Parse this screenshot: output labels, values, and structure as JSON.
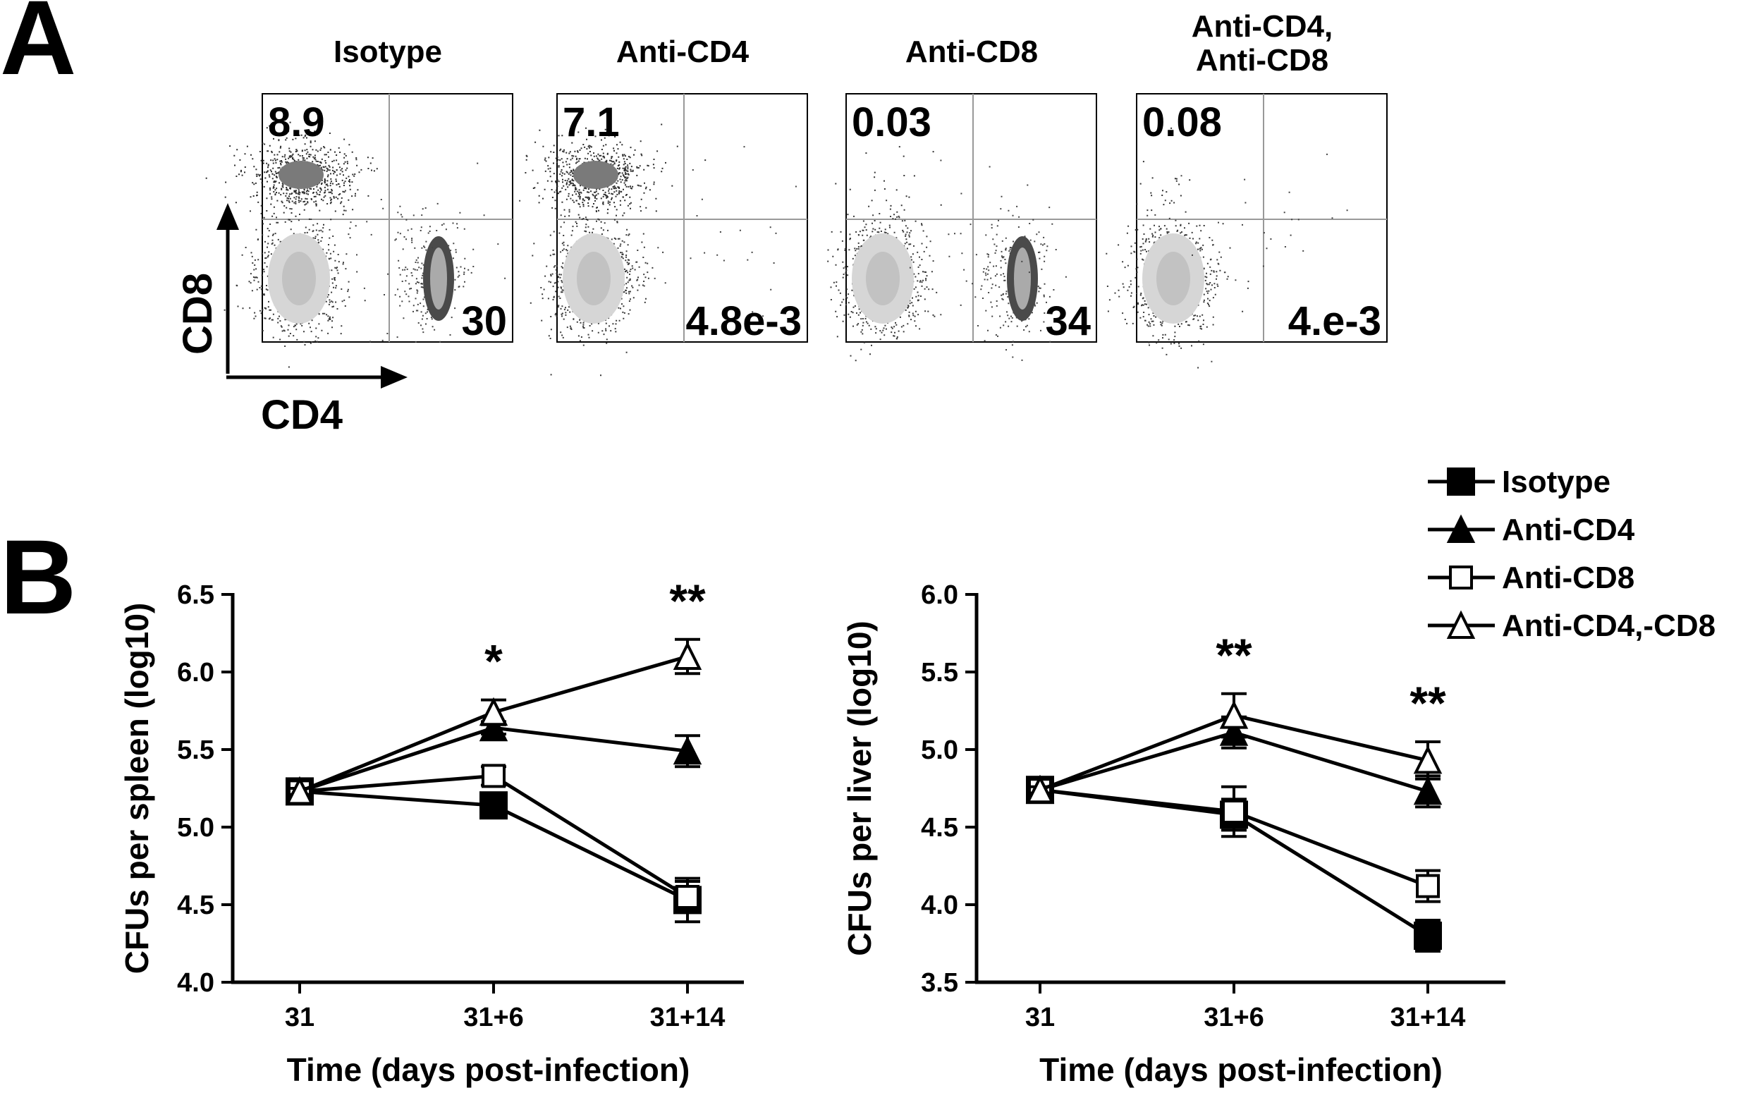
{
  "panel_a": {
    "letter": "A",
    "x_axis_label": "CD4",
    "y_axis_label": "CD8",
    "plots": [
      {
        "title_lines": [
          "Isotype"
        ],
        "cd8_value": "8.9",
        "cd4_value": "30",
        "cd4_pop": true
      },
      {
        "title_lines": [
          "Anti-CD4"
        ],
        "cd8_value": "7.1",
        "cd4_value": "4.8e-3",
        "cd4_pop": false
      },
      {
        "title_lines": [
          "Anti-CD8"
        ],
        "cd8_value": "0.03",
        "cd4_value": "34",
        "cd4_pop": true
      },
      {
        "title_lines": [
          "Anti-CD4,",
          "Anti-CD8"
        ],
        "cd8_value": "0.08",
        "cd4_value": "4.e-3",
        "cd4_pop": false
      }
    ]
  },
  "panel_b": {
    "letter": "B",
    "legend": [
      {
        "label": "Isotype",
        "marker": "filled-square"
      },
      {
        "label": "Anti-CD4",
        "marker": "filled-triangle"
      },
      {
        "label": "Anti-CD8",
        "marker": "open-square"
      },
      {
        "label": "Anti-CD4,-CD8",
        "marker": "open-triangle"
      }
    ]
  },
  "chart_data": [
    {
      "type": "line",
      "xlabel": "Time (days post-infection)",
      "ylabel": "CFUs per spleen (log10)",
      "categories": [
        "31",
        "31+6",
        "31+14"
      ],
      "ylim": [
        4.0,
        6.5
      ],
      "yticks": [
        "4.0",
        "4.5",
        "5.0",
        "5.5",
        "6.0",
        "6.5"
      ],
      "significance": [
        {
          "category": "31+6",
          "label": "*"
        },
        {
          "category": "31+14",
          "label": "**"
        }
      ],
      "series": [
        {
          "name": "Isotype",
          "marker": "filled-square",
          "values": [
            5.23,
            5.14,
            4.53
          ],
          "errors": [
            0.02,
            0.05,
            0.14
          ]
        },
        {
          "name": "Anti-CD4",
          "marker": "filled-triangle",
          "values": [
            5.23,
            5.64,
            5.49
          ],
          "errors": [
            0.02,
            0.04,
            0.1
          ]
        },
        {
          "name": "Anti-CD8",
          "marker": "open-square",
          "values": [
            5.23,
            5.33,
            4.55
          ],
          "errors": [
            0.02,
            0.06,
            0.1
          ]
        },
        {
          "name": "Anti-CD4,-CD8",
          "marker": "open-triangle",
          "values": [
            5.23,
            5.74,
            6.1
          ],
          "errors": [
            0.02,
            0.08,
            0.11
          ]
        }
      ]
    },
    {
      "type": "line",
      "xlabel": "Time (days post-infection)",
      "ylabel": "CFUs per liver (log10)",
      "categories": [
        "31",
        "31+6",
        "31+14"
      ],
      "ylim": [
        3.5,
        6.0
      ],
      "yticks": [
        "3.5",
        "4.0",
        "4.5",
        "5.0",
        "5.5",
        "6.0"
      ],
      "significance": [
        {
          "category": "31+6",
          "label": "**"
        },
        {
          "category": "31+14",
          "label": "**"
        }
      ],
      "series": [
        {
          "name": "Isotype",
          "marker": "filled-square",
          "values": [
            4.74,
            4.58,
            3.8
          ],
          "errors": [
            0.02,
            0.1,
            0.1
          ]
        },
        {
          "name": "Anti-CD4",
          "marker": "filled-triangle",
          "values": [
            4.74,
            5.11,
            4.73
          ],
          "errors": [
            0.02,
            0.1,
            0.1
          ]
        },
        {
          "name": "Anti-CD8",
          "marker": "open-square",
          "values": [
            4.74,
            4.6,
            4.12
          ],
          "errors": [
            0.02,
            0.16,
            0.1
          ]
        },
        {
          "name": "Anti-CD4,-CD8",
          "marker": "open-triangle",
          "values": [
            4.74,
            5.22,
            4.93
          ],
          "errors": [
            0.02,
            0.14,
            0.12
          ]
        }
      ]
    }
  ]
}
